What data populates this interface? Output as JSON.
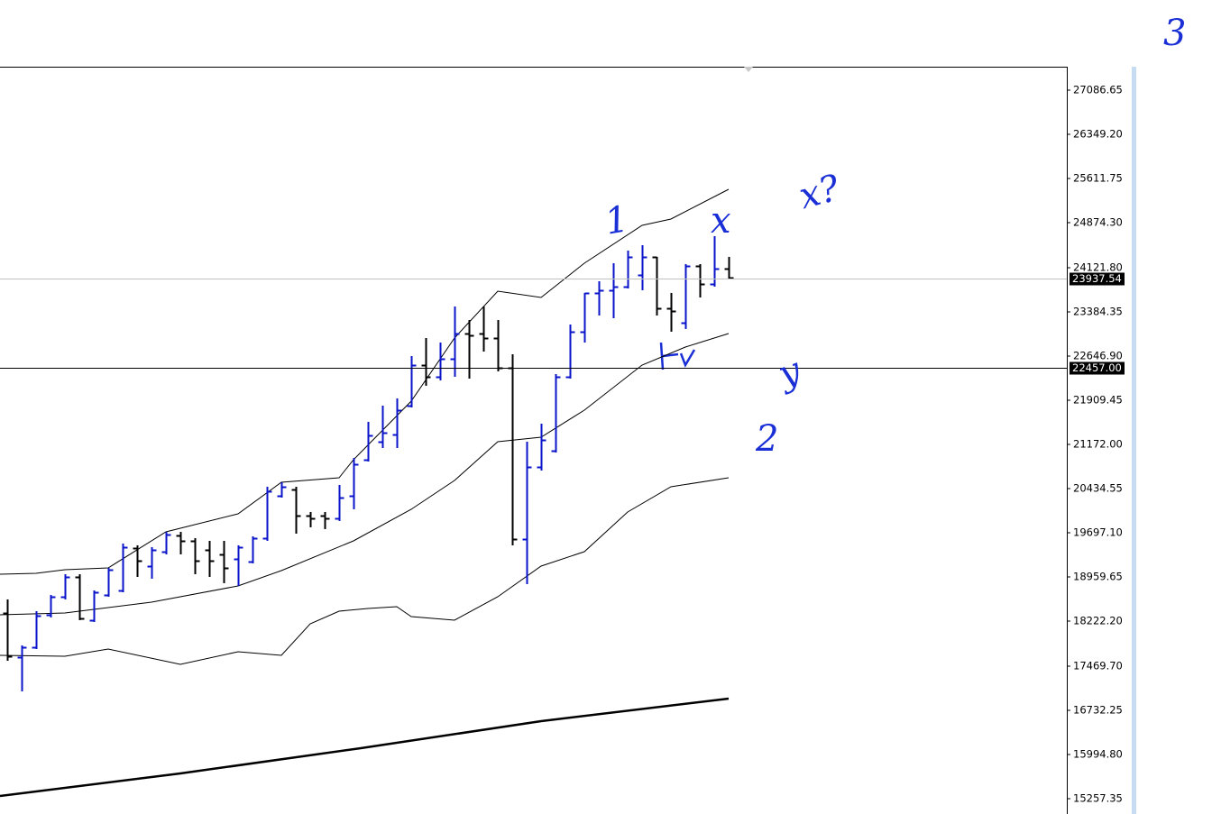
{
  "chart_data": {
    "type": "ohlc",
    "open": [
      18358,
      17621,
      17786,
      18328,
      18629,
      18960,
      18238,
      18659,
      18734,
      19442,
      19141,
      19381,
      19652,
      19562,
      19411,
      19336,
      19261,
      19216,
      19607,
      20314,
      20420,
      19983,
      19983,
      19938,
      20314,
      20916,
      21217,
      21338,
      21819,
      22497,
      22301,
      22602,
      23023,
      23023,
      22948,
      22452,
      19592,
      20796,
      21067,
      22301,
      23054,
      23701,
      23746,
      23806,
      24002,
      24303,
      23445,
      23204,
      24152,
      23851,
      24107
    ],
    "high": [
      18584,
      17816,
      18388,
      18659,
      19005,
      19005,
      18734,
      19110,
      19517,
      19487,
      19457,
      19712,
      19712,
      19607,
      19562,
      19562,
      19487,
      19637,
      20465,
      20540,
      20465,
      20044,
      20044,
      20495,
      20947,
      21549,
      21819,
      21940,
      22647,
      22948,
      22873,
      23475,
      23249,
      23475,
      23249,
      22677,
      21217,
      21518,
      22346,
      23174,
      23701,
      23896,
      24197,
      24408,
      24498,
      24303,
      23701,
      24182,
      24182,
      24649,
      24303
    ],
    "low": [
      17560,
      17049,
      17756,
      18283,
      18584,
      18238,
      18207,
      18629,
      18704,
      18960,
      18930,
      19336,
      19336,
      19005,
      18960,
      18855,
      18809,
      19186,
      19562,
      20284,
      19682,
      19788,
      19758,
      19893,
      20089,
      20886,
      21112,
      21112,
      21789,
      22151,
      22241,
      22301,
      22271,
      22722,
      22391,
      19487,
      18840,
      20736,
      21037,
      22271,
      22873,
      23324,
      23279,
      23776,
      23746,
      23324,
      23054,
      23099,
      23625,
      23806,
      23926
    ],
    "close": [
      17636,
      17786,
      18313,
      18629,
      18960,
      18268,
      18704,
      19080,
      19457,
      19231,
      19411,
      19667,
      19562,
      19231,
      19231,
      19110,
      19457,
      19607,
      20390,
      20465,
      19983,
      19938,
      19938,
      20284,
      20841,
      21323,
      21368,
      21744,
      22497,
      22301,
      22602,
      23023,
      22993,
      22948,
      22452,
      19592,
      20796,
      21248,
      22301,
      23054,
      23701,
      23746,
      23806,
      24303,
      24303,
      23445,
      23400,
      24152,
      23851,
      24107,
      23957
    ],
    "up_color": "#0a14c8",
    "down_color": "#000000",
    "overlays": [
      {
        "x": [
          -0.5,
          2,
          4,
          7,
          11,
          16,
          19,
          23,
          24,
          28,
          31,
          34,
          37,
          40,
          44,
          46,
          50
        ],
        "values": [
          19005,
          19020,
          19080,
          19110,
          19712,
          20013,
          20540,
          20615,
          20916,
          21895,
          22948,
          23731,
          23625,
          24197,
          24829,
          24935,
          25431
        ],
        "color": "#000000",
        "width": 1
      },
      {
        "x": [
          -0.5,
          4,
          10,
          16,
          19,
          24,
          28,
          31,
          34,
          37,
          40,
          44,
          47,
          50
        ],
        "values": [
          18328,
          18358,
          18539,
          18809,
          19065,
          19562,
          20089,
          20570,
          21217,
          21293,
          21744,
          22497,
          22798,
          23023
        ],
        "color": "#000000",
        "width": 1
      },
      {
        "x": [
          -0.5,
          4,
          7,
          12,
          16,
          19,
          21,
          23,
          25,
          27,
          28,
          31,
          34,
          37,
          40,
          43,
          46,
          50
        ],
        "values": [
          17651,
          17636,
          17756,
          17500,
          17711,
          17651,
          18177,
          18388,
          18433,
          18463,
          18298,
          18238,
          18629,
          19141,
          19381,
          20044,
          20465,
          20615
        ],
        "color": "#000000",
        "width": 1
      },
      {
        "x": [
          -0.5,
          12,
          24.5,
          37,
          50
        ],
        "values": [
          15303,
          15679,
          16100,
          16552,
          16928
        ],
        "color": "#000000",
        "width": 2.5
      }
    ],
    "xlim": [
      -0.5,
      73.4375
    ],
    "ylim": [
      15001.5,
      27477.95
    ],
    "yticks": [
      27086.65,
      {
        "value": 26349.2,
        "label": "26349.20"
      },
      25611.75,
      {
        "value": 24874.3,
        "label": "24874.30"
      },
      {
        "value": 24121.8,
        "label": "24121.80"
      },
      23384.35,
      {
        "value": 22646.9,
        "label": "22646.90"
      },
      21909.45,
      {
        "value": 21172,
        "label": "21172.00"
      },
      20434.55,
      {
        "value": 19697.1,
        "label": "19697.10"
      },
      18959.65,
      {
        "value": 18222.2,
        "label": "18222.20"
      },
      {
        "value": 17469.7,
        "label": "17469.70"
      },
      16732.25,
      {
        "value": 15994.8,
        "label": "15994.80"
      },
      15257.35
    ],
    "price_lines": [
      23937.54,
      {
        "value": 22457,
        "label": "22457.00"
      }
    ],
    "price_line_colors": [
      "#c0c0c0",
      "#000000"
    ],
    "annotations": [
      "1",
      "x",
      "x?",
      "y",
      "2",
      "3"
    ]
  }
}
